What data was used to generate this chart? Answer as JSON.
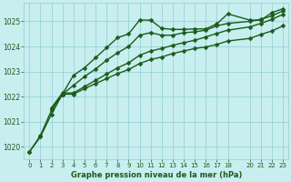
{
  "xlabel": "Graphe pression niveau de la mer (hPa)",
  "bg_color": "#c8eef0",
  "grid_color": "#8fcfcf",
  "line_color": "#1a5c1a",
  "ylim": [
    1019.5,
    1025.75
  ],
  "xlim": [
    -0.5,
    23.5
  ],
  "yticks": [
    1020,
    1021,
    1022,
    1023,
    1024,
    1025
  ],
  "xticks": [
    0,
    1,
    2,
    3,
    4,
    5,
    6,
    7,
    8,
    9,
    10,
    11,
    12,
    13,
    14,
    15,
    16,
    17,
    18,
    20,
    21,
    22,
    23
  ],
  "xtick_labels": [
    "0",
    "1",
    "2",
    "3",
    "4",
    "5",
    "6",
    "7",
    "8",
    "9",
    "10",
    "11",
    "12",
    "13",
    "14",
    "15",
    "16",
    "17",
    "18",
    "20",
    "21",
    "22",
    "23"
  ],
  "series": [
    {
      "x": [
        0,
        1,
        2,
        3,
        4,
        5,
        6,
        7,
        8,
        9,
        10,
        11,
        12,
        13,
        14,
        15,
        16,
        17,
        18,
        20,
        21,
        22,
        23
      ],
      "y": [
        1019.8,
        1020.4,
        1021.3,
        1022.1,
        1022.85,
        1023.15,
        1023.55,
        1023.95,
        1024.35,
        1024.5,
        1025.05,
        1025.05,
        1024.72,
        1024.68,
        1024.68,
        1024.7,
        1024.7,
        1024.9,
        1025.3,
        1025.05,
        1025.05,
        1025.35,
        1025.5
      ],
      "linestyle": "-",
      "marker": "D",
      "markersize": 2.5,
      "linewidth": 1.0
    },
    {
      "x": [
        0,
        1,
        2,
        3,
        4,
        5,
        6,
        7,
        8,
        9,
        10,
        11,
        12,
        13,
        14,
        15,
        16,
        17,
        18,
        20,
        21,
        22,
        23
      ],
      "y": [
        1019.8,
        1020.45,
        1021.45,
        1022.1,
        1022.45,
        1022.8,
        1023.1,
        1023.45,
        1023.75,
        1024.0,
        1024.45,
        1024.55,
        1024.45,
        1024.45,
        1024.55,
        1024.58,
        1024.65,
        1024.82,
        1024.92,
        1025.0,
        1025.08,
        1025.22,
        1025.42
      ],
      "linestyle": "-",
      "marker": "D",
      "markersize": 2.5,
      "linewidth": 1.0
    },
    {
      "x": [
        2,
        3,
        4,
        5,
        6,
        7,
        8,
        9,
        10,
        11,
        12,
        13,
        14,
        15,
        16,
        17,
        18,
        20,
        21,
        22,
        23
      ],
      "y": [
        1021.55,
        1022.15,
        1022.15,
        1022.4,
        1022.65,
        1022.9,
        1023.15,
        1023.35,
        1023.65,
        1023.82,
        1023.92,
        1024.05,
        1024.15,
        1024.25,
        1024.38,
        1024.52,
        1024.65,
        1024.78,
        1024.92,
        1025.08,
        1025.28
      ],
      "linestyle": "-",
      "marker": "D",
      "markersize": 2.5,
      "linewidth": 1.0
    },
    {
      "x": [
        2,
        3,
        4,
        5,
        6,
        7,
        8,
        9,
        10,
        11,
        12,
        13,
        14,
        15,
        16,
        17,
        18,
        20,
        21,
        22,
        23
      ],
      "y": [
        1021.55,
        1022.1,
        1022.1,
        1022.32,
        1022.52,
        1022.72,
        1022.92,
        1023.08,
        1023.32,
        1023.48,
        1023.58,
        1023.72,
        1023.82,
        1023.92,
        1023.98,
        1024.08,
        1024.22,
        1024.32,
        1024.48,
        1024.62,
        1024.82
      ],
      "linestyle": "-",
      "marker": "D",
      "markersize": 2.5,
      "linewidth": 1.0
    }
  ]
}
